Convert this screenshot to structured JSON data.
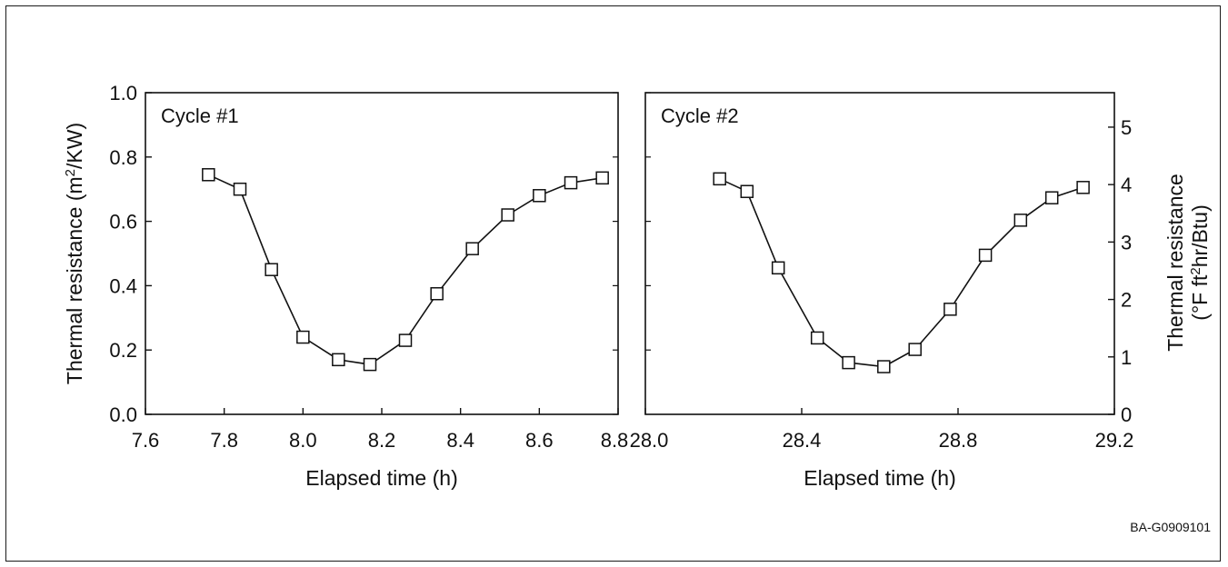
{
  "figure_id": "BA-G0909101",
  "chart_data": [
    {
      "type": "line",
      "title": "Cycle #1",
      "xlabel": "Elapsed time (h)",
      "ylabel": "Thermal resistance (m2/KW)",
      "ylabel_main": "Thermal resistance (m",
      "ylabel_sup": "2",
      "ylabel_tail": "/KW)",
      "xlim": [
        7.6,
        8.8
      ],
      "ylim": [
        0.0,
        1.0
      ],
      "xticks": [
        7.6,
        7.8,
        8.0,
        8.2,
        8.4,
        8.6,
        8.8
      ],
      "xtick_labels": [
        "7.6",
        "7.8",
        "8.0",
        "8.2",
        "8.4",
        "8.6",
        "8.8"
      ],
      "yticks": [
        0.0,
        0.2,
        0.4,
        0.6,
        0.8,
        1.0
      ],
      "ytick_labels": [
        "0.0",
        "0.2",
        "0.4",
        "0.6",
        "0.8",
        "1.0"
      ],
      "grid": false,
      "marker": "open-square",
      "x": [
        7.76,
        7.84,
        7.92,
        8.0,
        8.09,
        8.17,
        8.26,
        8.34,
        8.43,
        8.52,
        8.6,
        8.68,
        8.76
      ],
      "y": [
        0.745,
        0.7,
        0.45,
        0.24,
        0.17,
        0.155,
        0.23,
        0.375,
        0.515,
        0.62,
        0.68,
        0.72,
        0.735
      ]
    },
    {
      "type": "line",
      "title": "Cycle #2",
      "xlabel": "Elapsed time (h)",
      "ylabel": "Thermal resistance (°F ft2hr/Btu)",
      "ylabel_line1": "Thermal resistance",
      "ylabel_line2_main": "(°F ft",
      "ylabel_line2_sup": "2",
      "ylabel_line2_tail": "hr/Btu)",
      "xlim": [
        28.0,
        29.2
      ],
      "ylim": [
        0.0,
        5.6
      ],
      "xticks": [
        28.0,
        28.4,
        28.8,
        29.2
      ],
      "xtick_labels": [
        "28.0",
        "28.4",
        "28.8",
        "29.2"
      ],
      "yticks": [
        0,
        1,
        2,
        3,
        4,
        5
      ],
      "ytick_labels": [
        "0",
        "1",
        "2",
        "3",
        "4",
        "5"
      ],
      "grid": false,
      "marker": "open-square",
      "x": [
        28.19,
        28.26,
        28.34,
        28.44,
        28.52,
        28.61,
        28.69,
        28.78,
        28.87,
        28.96,
        29.04,
        29.12
      ],
      "y": [
        4.1,
        3.88,
        2.55,
        1.33,
        0.9,
        0.83,
        1.13,
        1.83,
        2.77,
        3.38,
        3.77,
        3.95
      ]
    }
  ]
}
